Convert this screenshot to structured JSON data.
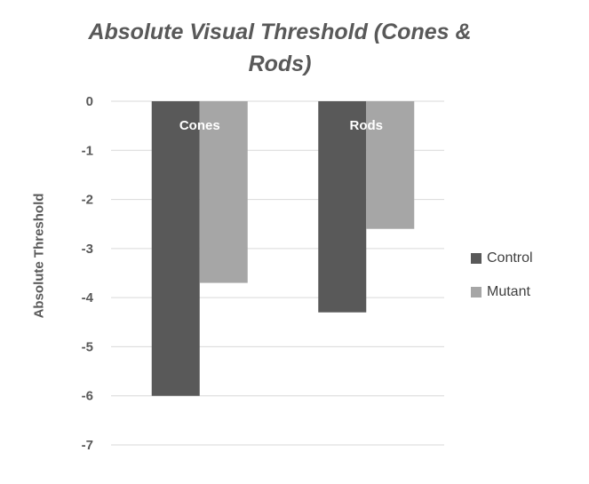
{
  "chart_data": {
    "type": "bar",
    "title": "Absolute Visual Threshold (Cones & Rods)",
    "ylabel": "Absolute Threshold",
    "xlabel": "",
    "categories": [
      "Cones",
      "Rods"
    ],
    "series": [
      {
        "name": "Control",
        "color": "#595959",
        "values": [
          -6.0,
          -4.3
        ]
      },
      {
        "name": "Mutant",
        "color": "#a6a6a6",
        "values": [
          -3.7,
          -2.6
        ]
      }
    ],
    "ylim": [
      -7,
      0
    ],
    "yticks": [
      "0",
      "-1",
      "-2",
      "-3",
      "-4",
      "-5",
      "-6",
      "-7"
    ],
    "grid": true,
    "legend_position": "right"
  }
}
